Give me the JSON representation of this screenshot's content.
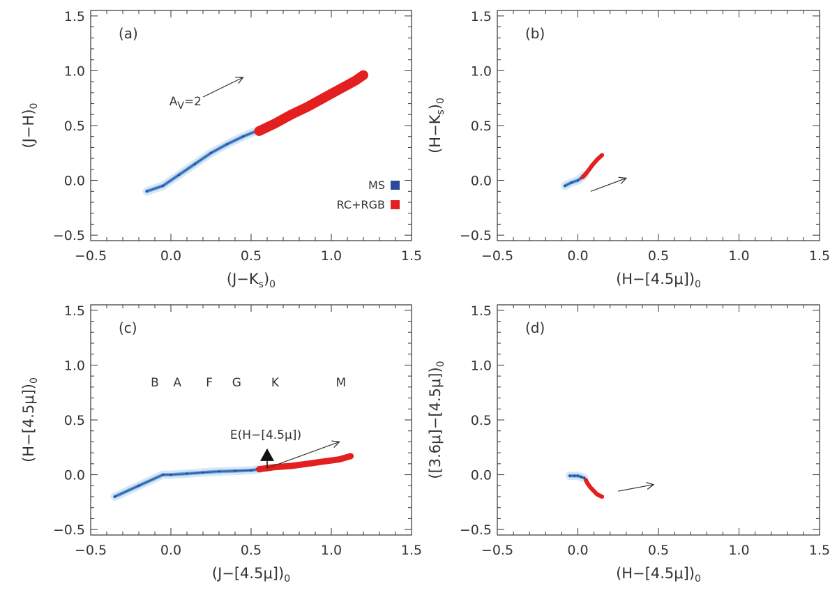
{
  "colors": {
    "ms": "#2b4a9a",
    "rc_rgb": "#e41f1f",
    "ms_light": "#6aa8dc",
    "ms_faint": "#d6e8f7",
    "axis": "#333333"
  },
  "chart_data": [
    {
      "id": "a",
      "type": "scatter",
      "panel_label": "(a)",
      "xlabel": "(J−K",
      "xlabel_sub": "s",
      "xlabel_tail": ")",
      "xlabel_tail_sub": "0",
      "ylabel": "(J−H)",
      "ylabel_sub": "0",
      "xlim": [
        -0.5,
        1.5
      ],
      "ylim": [
        -0.55,
        1.55
      ],
      "xticks": [
        "−0.5",
        "0.0",
        "0.5",
        "1.0",
        "1.5"
      ],
      "yticks": [
        "−0.5",
        "0.0",
        "0.5",
        "1.0",
        "1.5"
      ],
      "series": [
        {
          "name": "MS",
          "color": "#2b4a9a",
          "x": [
            -0.15,
            -0.05,
            0.05,
            0.15,
            0.25,
            0.35,
            0.45,
            0.55
          ],
          "y": [
            -0.1,
            -0.05,
            0.05,
            0.15,
            0.25,
            0.33,
            0.4,
            0.46
          ]
        },
        {
          "name": "RC+RGB",
          "color": "#e41f1f",
          "x": [
            0.55,
            0.65,
            0.75,
            0.85,
            0.95,
            1.05,
            1.15,
            1.2
          ],
          "y": [
            0.45,
            0.52,
            0.6,
            0.67,
            0.75,
            0.83,
            0.91,
            0.96
          ]
        }
      ],
      "annotations": [
        {
          "text": "A",
          "sub": "V",
          "tail": "=2",
          "x0": 0.2,
          "y0": 0.76,
          "x1": 0.45,
          "y1": 0.94
        }
      ],
      "legend": {
        "position": "bottom-right",
        "entries": [
          "MS",
          "RC+RGB"
        ]
      }
    },
    {
      "id": "b",
      "type": "scatter",
      "panel_label": "(b)",
      "xlabel": "(H−[4.5μ])",
      "xlabel_sub": "0",
      "ylabel": "(H−K",
      "ylabel_sub": "s",
      "ylabel_tail": ")",
      "ylabel_tail_sub": "0",
      "xlim": [
        -0.5,
        1.5
      ],
      "ylim": [
        -0.55,
        1.55
      ],
      "xticks": [
        "−0.5",
        "0.0",
        "0.5",
        "1.0",
        "1.5"
      ],
      "yticks": [
        "−0.5",
        "0.0",
        "0.5",
        "1.0",
        "1.5"
      ],
      "series": [
        {
          "name": "MS",
          "color": "#2b4a9a",
          "x": [
            -0.08,
            -0.04,
            0.0,
            0.02,
            0.04
          ],
          "y": [
            -0.05,
            -0.02,
            0.0,
            0.02,
            0.05
          ]
        },
        {
          "name": "RC+RGB",
          "color": "#e41f1f",
          "x": [
            0.03,
            0.05,
            0.07,
            0.09,
            0.12,
            0.15
          ],
          "y": [
            0.03,
            0.06,
            0.1,
            0.14,
            0.19,
            0.23
          ]
        }
      ],
      "annotations": [
        {
          "text": "",
          "x0": 0.08,
          "y0": -0.1,
          "x1": 0.3,
          "y1": 0.02
        }
      ]
    },
    {
      "id": "c",
      "type": "scatter",
      "panel_label": "(c)",
      "xlabel": "(J−[4.5μ])",
      "xlabel_sub": "0",
      "ylabel": "(H−[4.5μ])",
      "ylabel_sub": "0",
      "xlim": [
        -0.5,
        1.5
      ],
      "ylim": [
        -0.55,
        1.55
      ],
      "xticks": [
        "−0.5",
        "0.0",
        "0.5",
        "1.0",
        "1.5"
      ],
      "yticks": [
        "−0.5",
        "0.0",
        "0.5",
        "1.0",
        "1.5"
      ],
      "spectral_types": [
        {
          "label": "B",
          "x": -0.1
        },
        {
          "label": "A",
          "x": 0.04
        },
        {
          "label": "F",
          "x": 0.24
        },
        {
          "label": "G",
          "x": 0.41
        },
        {
          "label": "K",
          "x": 0.65
        },
        {
          "label": "M",
          "x": 1.06
        }
      ],
      "spectral_types_y": 0.85,
      "series": [
        {
          "name": "MS",
          "color": "#2b4a9a",
          "x": [
            -0.35,
            -0.2,
            -0.05,
            0.0,
            0.1,
            0.2,
            0.3,
            0.4,
            0.5,
            0.55
          ],
          "y": [
            -0.2,
            -0.1,
            0.0,
            0.0,
            0.01,
            0.02,
            0.03,
            0.035,
            0.04,
            0.05
          ]
        },
        {
          "name": "RC+RGB",
          "color": "#e41f1f",
          "x": [
            0.55,
            0.65,
            0.75,
            0.85,
            0.95,
            1.05,
            1.12
          ],
          "y": [
            0.05,
            0.07,
            0.08,
            0.1,
            0.12,
            0.14,
            0.17
          ]
        }
      ],
      "annotations": [
        {
          "text": "E(H−[4.5μ])",
          "x0": 0.6,
          "y0": 0.06,
          "x1": 0.6,
          "y1": 0.24
        },
        {
          "text": "",
          "x0": 0.6,
          "y0": 0.06,
          "x1": 1.05,
          "y1": 0.3
        }
      ]
    },
    {
      "id": "d",
      "type": "scatter",
      "panel_label": "(d)",
      "xlabel": "(H−[4.5μ])",
      "xlabel_sub": "0",
      "ylabel": "([3.6μ]−[4.5μ])",
      "ylabel_sub": "0",
      "xlim": [
        -0.5,
        1.5
      ],
      "ylim": [
        -0.55,
        1.55
      ],
      "xticks": [
        "−0.5",
        "0.0",
        "0.5",
        "1.0",
        "1.5"
      ],
      "yticks": [
        "−0.5",
        "0.0",
        "0.5",
        "1.0",
        "1.5"
      ],
      "series": [
        {
          "name": "MS",
          "color": "#2b4a9a",
          "x": [
            -0.05,
            -0.02,
            0.0,
            0.02,
            0.04
          ],
          "y": [
            -0.01,
            -0.01,
            -0.01,
            -0.02,
            -0.03
          ]
        },
        {
          "name": "RC+RGB",
          "color": "#e41f1f",
          "x": [
            0.05,
            0.06,
            0.08,
            0.1,
            0.12,
            0.15
          ],
          "y": [
            -0.05,
            -0.08,
            -0.12,
            -0.15,
            -0.18,
            -0.2
          ]
        }
      ],
      "annotations": [
        {
          "text": "",
          "x0": 0.25,
          "y0": -0.15,
          "x1": 0.47,
          "y1": -0.09
        }
      ]
    }
  ]
}
